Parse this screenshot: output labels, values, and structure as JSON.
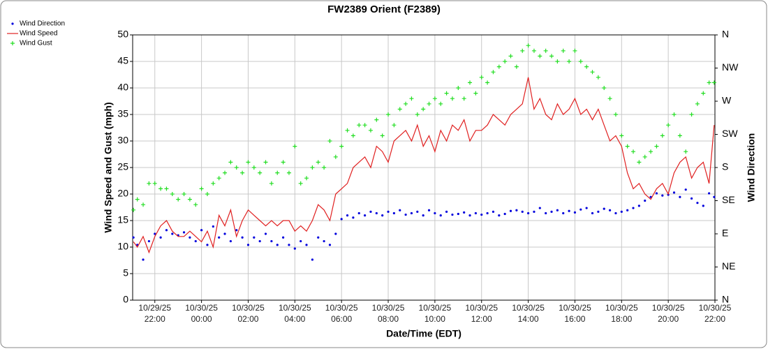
{
  "chart_data": {
    "type": "line",
    "title": "FW2389 Orient (F2389)",
    "x_label": "Date/Time (EDT)",
    "y_label": "Wind Speed and Gust (mph)",
    "y2_label": "Wind Direction",
    "grid": true,
    "legend": "top-left",
    "xlim": [
      "2025-10-29T21:03",
      "2025-10-30T22:00"
    ],
    "xticks": [
      {
        "value": "2025-10-29T22:00",
        "label": "10/29/25\n22:00"
      },
      {
        "value": "2025-10-30T00:00",
        "label": "10/30/25\n00:00"
      },
      {
        "value": "2025-10-30T02:00",
        "label": "10/30/25\n02:00"
      },
      {
        "value": "2025-10-30T04:00",
        "label": "10/30/25\n04:00"
      },
      {
        "value": "2025-10-30T06:00",
        "label": "10/30/25\n06:00"
      },
      {
        "value": "2025-10-30T08:00",
        "label": "10/30/25\n08:00"
      },
      {
        "value": "2025-10-30T10:00",
        "label": "10/30/25\n10:00"
      },
      {
        "value": "2025-10-30T12:00",
        "label": "10/30/25\n12:00"
      },
      {
        "value": "2025-10-30T14:00",
        "label": "10/30/25\n14:00"
      },
      {
        "value": "2025-10-30T16:00",
        "label": "10/30/25\n16:00"
      },
      {
        "value": "2025-10-30T18:00",
        "label": "10/30/25\n18:00"
      },
      {
        "value": "2025-10-30T20:00",
        "label": "10/30/25\n20:00"
      },
      {
        "value": "2025-10-30T22:00",
        "label": "10/30/25\n22:00"
      }
    ],
    "ylim": [
      0,
      50
    ],
    "yticks": [
      0,
      5,
      10,
      15,
      20,
      25,
      30,
      35,
      40,
      45,
      50
    ],
    "y2lim": [
      0,
      360
    ],
    "y2ticks": [
      {
        "value": 0,
        "label": "N"
      },
      {
        "value": 45,
        "label": "NE"
      },
      {
        "value": 90,
        "label": "E"
      },
      {
        "value": 135,
        "label": "SE"
      },
      {
        "value": 180,
        "label": "S"
      },
      {
        "value": 225,
        "label": "SW"
      },
      {
        "value": 270,
        "label": "W"
      },
      {
        "value": 315,
        "label": "NW"
      },
      {
        "value": 360,
        "label": "N"
      }
    ],
    "x": [
      "2025-10-29T21:05",
      "2025-10-29T21:15",
      "2025-10-29T21:30",
      "2025-10-29T21:45",
      "2025-10-29T22:00",
      "2025-10-29T22:15",
      "2025-10-29T22:30",
      "2025-10-29T22:45",
      "2025-10-29T23:00",
      "2025-10-29T23:15",
      "2025-10-29T23:30",
      "2025-10-29T23:45",
      "2025-10-30T00:00",
      "2025-10-30T00:15",
      "2025-10-30T00:30",
      "2025-10-30T00:45",
      "2025-10-30T01:00",
      "2025-10-30T01:15",
      "2025-10-30T01:30",
      "2025-10-30T01:45",
      "2025-10-30T02:00",
      "2025-10-30T02:15",
      "2025-10-30T02:30",
      "2025-10-30T02:45",
      "2025-10-30T03:00",
      "2025-10-30T03:15",
      "2025-10-30T03:30",
      "2025-10-30T03:45",
      "2025-10-30T04:00",
      "2025-10-30T04:15",
      "2025-10-30T04:30",
      "2025-10-30T04:45",
      "2025-10-30T05:00",
      "2025-10-30T05:15",
      "2025-10-30T05:30",
      "2025-10-30T05:45",
      "2025-10-30T06:00",
      "2025-10-30T06:15",
      "2025-10-30T06:30",
      "2025-10-30T06:45",
      "2025-10-30T07:00",
      "2025-10-30T07:15",
      "2025-10-30T07:30",
      "2025-10-30T07:45",
      "2025-10-30T08:00",
      "2025-10-30T08:15",
      "2025-10-30T08:30",
      "2025-10-30T08:45",
      "2025-10-30T09:00",
      "2025-10-30T09:15",
      "2025-10-30T09:30",
      "2025-10-30T09:45",
      "2025-10-30T10:00",
      "2025-10-30T10:15",
      "2025-10-30T10:30",
      "2025-10-30T10:45",
      "2025-10-30T11:00",
      "2025-10-30T11:15",
      "2025-10-30T11:30",
      "2025-10-30T11:45",
      "2025-10-30T12:00",
      "2025-10-30T12:15",
      "2025-10-30T12:30",
      "2025-10-30T12:45",
      "2025-10-30T13:00",
      "2025-10-30T13:15",
      "2025-10-30T13:30",
      "2025-10-30T13:45",
      "2025-10-30T14:00",
      "2025-10-30T14:15",
      "2025-10-30T14:30",
      "2025-10-30T14:45",
      "2025-10-30T15:00",
      "2025-10-30T15:15",
      "2025-10-30T15:30",
      "2025-10-30T15:45",
      "2025-10-30T16:00",
      "2025-10-30T16:15",
      "2025-10-30T16:30",
      "2025-10-30T16:45",
      "2025-10-30T17:00",
      "2025-10-30T17:15",
      "2025-10-30T17:30",
      "2025-10-30T17:45",
      "2025-10-30T18:00",
      "2025-10-30T18:15",
      "2025-10-30T18:30",
      "2025-10-30T18:45",
      "2025-10-30T19:00",
      "2025-10-30T19:15",
      "2025-10-30T19:30",
      "2025-10-30T19:45",
      "2025-10-30T20:00",
      "2025-10-30T20:15",
      "2025-10-30T20:30",
      "2025-10-30T20:45",
      "2025-10-30T21:00",
      "2025-10-30T21:15",
      "2025-10-30T21:30",
      "2025-10-30T21:45",
      "2025-10-30T21:58"
    ],
    "series": [
      {
        "name": "Wind Direction",
        "color": "#0000dd",
        "style": "dot",
        "axis": "y2",
        "values": [
          85,
          75,
          55,
          80,
          90,
          85,
          95,
          90,
          88,
          92,
          85,
          80,
          95,
          75,
          100,
          85,
          90,
          80,
          95,
          85,
          75,
          85,
          80,
          90,
          80,
          75,
          85,
          75,
          70,
          80,
          75,
          55,
          85,
          80,
          75,
          90,
          110,
          115,
          112,
          118,
          115,
          120,
          118,
          115,
          120,
          118,
          122,
          116,
          118,
          120,
          115,
          122,
          118,
          115,
          120,
          116,
          117,
          119,
          115,
          118,
          116,
          118,
          120,
          115,
          117,
          121,
          122,
          120,
          118,
          120,
          125,
          118,
          120,
          122,
          118,
          121,
          119,
          123,
          125,
          118,
          120,
          124,
          122,
          118,
          120,
          122,
          125,
          128,
          135,
          140,
          145,
          142,
          143,
          146,
          140,
          150,
          138,
          132,
          128,
          145,
          140
        ]
      },
      {
        "name": "Wind Speed",
        "color": "#e02020",
        "style": "line",
        "values": [
          11,
          10,
          12,
          9,
          12,
          14,
          15,
          13,
          12,
          12,
          13,
          12,
          11,
          13,
          10,
          16,
          14,
          17,
          12,
          15,
          17,
          16,
          15,
          14,
          15,
          14,
          15,
          15,
          13,
          14,
          13,
          15,
          18,
          17,
          15,
          20,
          21,
          22,
          25,
          26,
          27,
          25,
          29,
          28,
          26,
          30,
          31,
          32,
          30,
          33,
          29,
          31,
          28,
          32,
          30,
          33,
          32,
          34,
          30,
          32,
          32,
          33,
          35,
          34,
          33,
          35,
          36,
          37,
          42,
          36,
          38,
          35,
          34,
          37,
          35,
          36,
          38,
          35,
          36,
          34,
          36,
          33,
          30,
          31,
          29,
          24,
          21,
          22,
          20,
          19,
          21,
          22,
          20,
          24,
          26,
          27,
          23,
          25,
          26,
          22,
          33
        ]
      },
      {
        "name": "Wind Gust",
        "color": "#22dd22",
        "style": "plus",
        "values": [
          17,
          19,
          18,
          22,
          22,
          21,
          21,
          20,
          19,
          20,
          19,
          18,
          21,
          20,
          22,
          23,
          24,
          26,
          25,
          24,
          26,
          25,
          24,
          26,
          22,
          24,
          26,
          24,
          29,
          22,
          23,
          25,
          26,
          25,
          30,
          27,
          29,
          32,
          31,
          33,
          33,
          32,
          34,
          31,
          35,
          33,
          36,
          37,
          38,
          35,
          36,
          37,
          38,
          37,
          39,
          38,
          40,
          38,
          41,
          39,
          42,
          41,
          43,
          44,
          45,
          46,
          44,
          47,
          48,
          47,
          46,
          47,
          46,
          45,
          47,
          45,
          47,
          45,
          44,
          43,
          42,
          40,
          38,
          35,
          31,
          29,
          28,
          26,
          27,
          28,
          29,
          31,
          33,
          35,
          31,
          28,
          35,
          37,
          39,
          41,
          41
        ]
      }
    ]
  }
}
